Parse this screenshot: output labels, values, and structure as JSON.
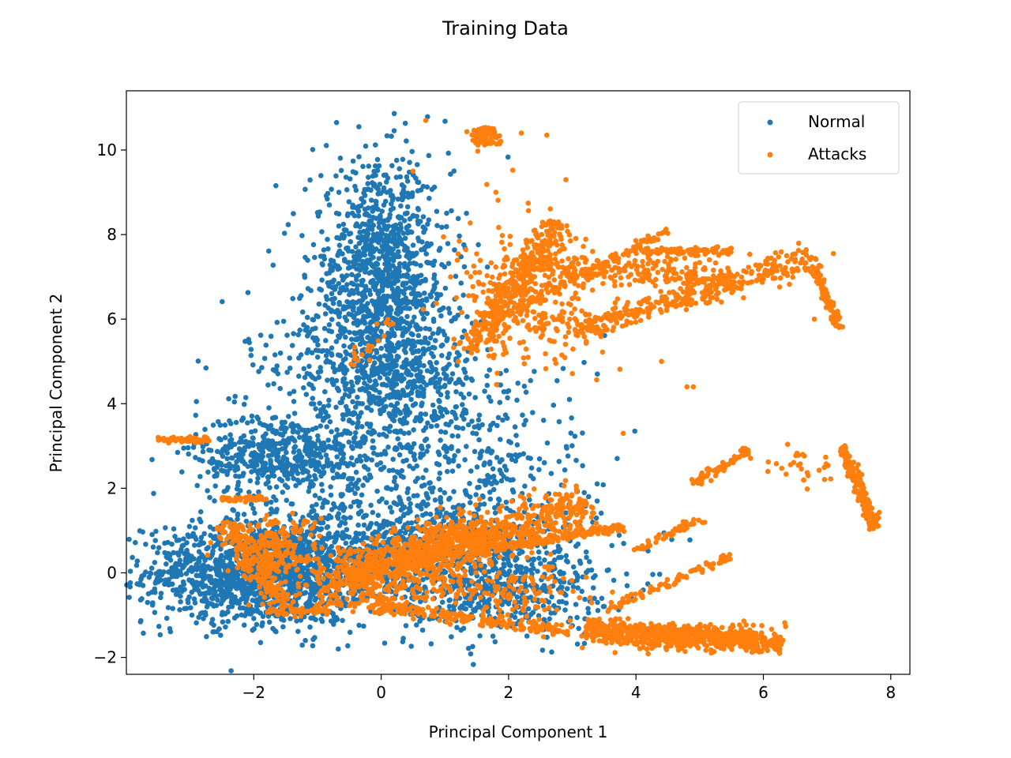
{
  "chart_data": {
    "type": "scatter",
    "title": "Training Data",
    "xlabel": "Principal Component 1",
    "ylabel": "Principal Component 2",
    "xlim": [
      -4.0,
      8.3
    ],
    "ylim": [
      -2.4,
      11.4
    ],
    "xticks": [
      -2,
      0,
      2,
      4,
      6,
      8
    ],
    "yticks": [
      -2,
      0,
      2,
      4,
      6,
      8,
      10
    ],
    "xtick_labels": [
      "−2",
      "0",
      "2",
      "4",
      "6",
      "8"
    ],
    "ytick_labels": [
      "−2",
      "0",
      "2",
      "4",
      "6",
      "8",
      "10"
    ],
    "grid": false,
    "legend": "top-right",
    "series": [
      {
        "name": "Normal",
        "color": "#1f77b4",
        "clusters": [
          {
            "center": [
              -1.9,
              0.0
            ],
            "spread": [
              0.9,
              0.6
            ],
            "count": 1400
          },
          {
            "center": [
              -1.5,
              2.8
            ],
            "spread": [
              0.7,
              0.5
            ],
            "count": 600
          },
          {
            "center": [
              0.0,
              7.0
            ],
            "spread": [
              0.55,
              1.3
            ],
            "count": 1100
          },
          {
            "center": [
              0.3,
              4.5
            ],
            "spread": [
              0.6,
              0.9
            ],
            "count": 500
          },
          {
            "center": [
              0.6,
              0.5
            ],
            "spread": [
              1.3,
              0.8
            ],
            "count": 1100
          },
          {
            "center": [
              -1.0,
              5.0
            ],
            "spread": [
              0.6,
              0.7
            ],
            "count": 120
          },
          {
            "center": [
              1.5,
              3.0
            ],
            "spread": [
              1.0,
              1.2
            ],
            "count": 260
          },
          {
            "center": [
              2.0,
              -0.4
            ],
            "spread": [
              0.8,
              0.5
            ],
            "count": 300
          }
        ],
        "points": [
          [
            -0.7,
            10.65
          ],
          [
            -0.35,
            10.55
          ],
          [
            -2.9,
            4.05
          ],
          [
            -3.1,
            2.95
          ],
          [
            -2.9,
            0.2
          ]
        ]
      },
      {
        "name": "Attacks",
        "color": "#ff7f0e",
        "lines": [
          {
            "from": [
              -1.0,
              -0.2
            ],
            "to": [
              3.3,
              1.6
            ],
            "count": 700,
            "width": 0.25
          },
          {
            "from": [
              -0.5,
              -0.3
            ],
            "to": [
              1.8,
              1.0
            ],
            "count": 500,
            "width": 0.35
          },
          {
            "from": [
              1.5,
              0.5
            ],
            "to": [
              3.8,
              1.1
            ],
            "count": 200,
            "width": 0.05
          },
          {
            "from": [
              -1.0,
              -0.6
            ],
            "to": [
              3.0,
              -1.4
            ],
            "count": 220,
            "width": 0.08
          },
          {
            "from": [
              -2.5,
              1.75
            ],
            "to": [
              -1.8,
              1.75
            ],
            "count": 60,
            "width": 0.03
          },
          {
            "from": [
              -3.5,
              3.15
            ],
            "to": [
              -2.7,
              3.15
            ],
            "count": 60,
            "width": 0.04
          },
          {
            "from": [
              1.4,
              5.2
            ],
            "to": [
              2.8,
              8.3
            ],
            "count": 300,
            "width": 0.15
          },
          {
            "from": [
              1.8,
              6.0
            ],
            "to": [
              4.5,
              8.1
            ],
            "count": 120,
            "width": 0.05
          },
          {
            "from": [
              2.2,
              7.3
            ],
            "to": [
              5.5,
              6.9
            ],
            "count": 260,
            "width": 0.2
          },
          {
            "from": [
              3.0,
              5.7
            ],
            "to": [
              6.8,
              7.5
            ],
            "count": 350,
            "width": 0.15
          },
          {
            "from": [
              4.0,
              7.6
            ],
            "to": [
              5.5,
              7.6
            ],
            "count": 100,
            "width": 0.05
          },
          {
            "from": [
              6.8,
              7.2
            ],
            "to": [
              7.2,
              5.8
            ],
            "count": 90,
            "width": 0.04
          },
          {
            "from": [
              7.25,
              3.0
            ],
            "to": [
              7.75,
              1.05
            ],
            "count": 150,
            "width": 0.05
          },
          {
            "from": [
              3.2,
              -1.3
            ],
            "to": [
              6.3,
              -1.7
            ],
            "count": 450,
            "width": 0.12
          },
          {
            "from": [
              3.5,
              -0.9
            ],
            "to": [
              5.5,
              0.4
            ],
            "count": 90,
            "width": 0.05
          },
          {
            "from": [
              4.0,
              0.5
            ],
            "to": [
              5.0,
              1.3
            ],
            "count": 50,
            "width": 0.05
          },
          {
            "from": [
              4.9,
              2.1
            ],
            "to": [
              5.8,
              2.9
            ],
            "count": 70,
            "width": 0.05
          },
          {
            "from": [
              -2.5,
              1.2
            ],
            "to": [
              -1.5,
              -0.8
            ],
            "count": 140,
            "width": 0.1
          },
          {
            "from": [
              -1.8,
              -0.9
            ],
            "to": [
              -0.8,
              -0.9
            ],
            "count": 60,
            "width": 0.04
          },
          {
            "from": [
              -0.5,
              4.9
            ],
            "to": [
              0.2,
              6.0
            ],
            "count": 20,
            "width": 0.1
          }
        ],
        "clusters": [
          {
            "center": [
              1.6,
              10.35
            ],
            "spread": [
              0.12,
              0.12
            ],
            "count": 80
          },
          {
            "center": [
              -1.7,
              0.5
            ],
            "spread": [
              0.35,
              0.45
            ],
            "count": 250
          },
          {
            "center": [
              4.7,
              -1.5
            ],
            "spread": [
              0.7,
              0.15
            ],
            "count": 350
          },
          {
            "center": [
              2.3,
              6.5
            ],
            "spread": [
              0.55,
              0.8
            ],
            "count": 300
          },
          {
            "center": [
              1.8,
              -0.4
            ],
            "spread": [
              0.7,
              0.3
            ],
            "count": 150
          },
          {
            "center": [
              6.5,
              2.5
            ],
            "spread": [
              0.4,
              0.2
            ],
            "count": 30
          }
        ],
        "points": [
          [
            -3.5,
            3.2
          ],
          [
            0.7,
            10.7
          ],
          [
            2.6,
            10.35
          ],
          [
            2.9,
            9.3
          ],
          [
            1.8,
            9.0
          ],
          [
            2.2,
            10.4
          ],
          [
            0.5,
            9.5
          ],
          [
            4.4,
            5.0
          ],
          [
            4.8,
            4.4
          ],
          [
            4.9,
            4.4
          ],
          [
            3.8,
            3.3
          ],
          [
            7.1,
            7.55
          ],
          [
            6.8,
            6.0
          ]
        ]
      }
    ]
  }
}
